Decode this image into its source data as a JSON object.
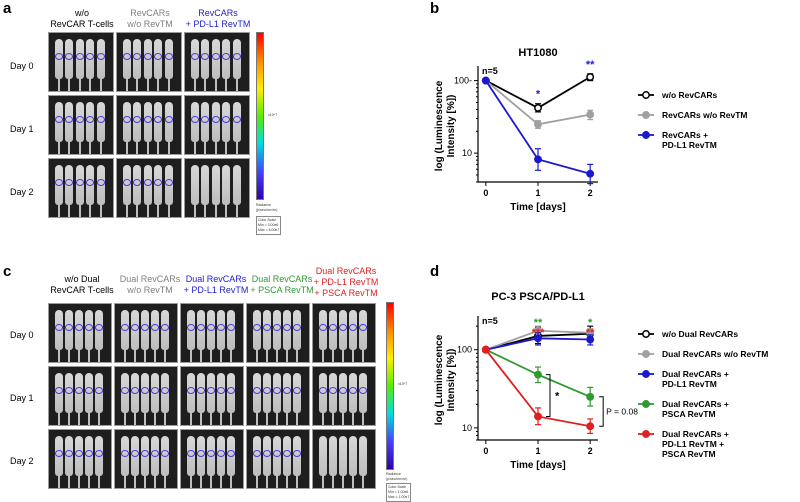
{
  "panels": {
    "a": {
      "label": "a",
      "columns": [
        {
          "line1": "w/o",
          "line2": "RevCAR T-cells",
          "color": "#000000"
        },
        {
          "line1": "RevCARs",
          "line2": "w/o RevTM",
          "color": "#808080"
        },
        {
          "line1": "RevCARs",
          "line2": "+ PD-L1 RevTM",
          "color": "#2020d0"
        }
      ],
      "rows": [
        "Day 0",
        "Day 1",
        "Day 2"
      ],
      "colorbar": {
        "exponent": "x10^7",
        "unit_title": "Radiance",
        "unit_sub": "(p/sec/cm²/sr)",
        "scale_title": "Color Scale",
        "scale_min": "Min = 3.00e6",
        "scale_max": "Max = 6.00e7"
      }
    },
    "b": {
      "label": "b"
    },
    "c": {
      "label": "c",
      "columns": [
        {
          "line1": "w/o Dual",
          "line2": "RevCAR T-cells",
          "line3": "",
          "color": "#000000"
        },
        {
          "line1": "Dual RevCARs",
          "line2": "w/o RevTM",
          "line3": "",
          "color": "#808080"
        },
        {
          "line1": "Dual RevCARs",
          "line2": "+ PD-L1 RevTM",
          "line3": "",
          "color": "#2020d0"
        },
        {
          "line1": "Dual RevCARs",
          "line2": "+ PSCA RevTM",
          "line3": "",
          "color": "#2f9a2f"
        },
        {
          "line1": "Dual RevCARs",
          "line2": "+ PD-L1 RevTM",
          "line3": "+ PSCA RevTM",
          "color": "#e02020"
        }
      ],
      "rows": [
        "Day 0",
        "Day 1",
        "Day 2"
      ],
      "colorbar": {
        "exponent": "x10^7",
        "unit_title": "Radiance",
        "unit_sub": "(p/sec/cm²/sr)",
        "scale_title": "Color Scale",
        "scale_min": "Min = 1.00e6",
        "scale_max": "Max = 1.00e7"
      }
    },
    "d": {
      "label": "d"
    }
  },
  "chart_data": [
    {
      "type": "line",
      "title": "HT1080",
      "xlabel": "Time [days]",
      "ylabel_line1": "log (Luminescence",
      "ylabel_line2": "Intensity [%])",
      "yscale": "log",
      "ylim": [
        4,
        140
      ],
      "xlim": [
        -0.15,
        2.15
      ],
      "xticks": [
        0,
        1,
        2
      ],
      "yticks": [
        {
          "v": 10,
          "label": "10"
        },
        {
          "v": 100,
          "label": "100-"
        }
      ],
      "annotation": "n=5",
      "x": [
        0,
        1,
        2
      ],
      "series": [
        {
          "name": "w/o RevCARs",
          "color": "#000000",
          "marker": "open",
          "values": [
            100,
            42,
            112
          ],
          "err": [
            [
              100,
              100
            ],
            [
              37,
              48
            ],
            [
              100,
              124
            ]
          ]
        },
        {
          "name": "RevCARs w/o RevTM",
          "color": "#a0a0a0",
          "marker": "filled",
          "values": [
            100,
            25,
            34
          ],
          "err": [
            [
              100,
              100
            ],
            [
              22,
              28
            ],
            [
              29,
              39
            ]
          ]
        },
        {
          "name": "RevCARs + PD-L1 RevTM",
          "legend_line1": "RevCARs +",
          "legend_line2": "PD-L1 RevTM",
          "color": "#1a1acc",
          "marker": "filled",
          "values": [
            100,
            8.2,
            5.2
          ],
          "err": [
            [
              100,
              100
            ],
            [
              5.8,
              11.5
            ],
            [
              3.8,
              7
            ]
          ]
        }
      ],
      "significance": [
        {
          "x": 1,
          "text": "*",
          "color": "#1a1acc"
        },
        {
          "x": 2,
          "text": "**",
          "color": "#1a1acc"
        }
      ]
    },
    {
      "type": "line",
      "title": "PC-3 PSCA/PD-L1",
      "xlabel": "Time [days]",
      "ylabel_line1": "log (Luminescence",
      "ylabel_line2": "Intensity [%])",
      "yscale": "log",
      "ylim": [
        7,
        240
      ],
      "xlim": [
        -0.15,
        2.15
      ],
      "xticks": [
        0,
        1,
        2
      ],
      "yticks": [
        {
          "v": 10,
          "label": "10"
        },
        {
          "v": 100,
          "label": "100"
        }
      ],
      "annotation": "n=5",
      "x": [
        0,
        1,
        2
      ],
      "series": [
        {
          "name": "w/o Dual RevCARs",
          "color": "#000000",
          "marker": "open",
          "values": [
            100,
            150,
            160
          ],
          "err": [
            [
              100,
              100
            ],
            [
              120,
              195
            ],
            [
              130,
              200
            ]
          ]
        },
        {
          "name": "Dual RevCARs w/o RevTM",
          "color": "#a0a0a0",
          "marker": "filled",
          "values": [
            100,
            175,
            165
          ],
          "err": [
            [
              100,
              100
            ],
            [
              150,
              200
            ],
            [
              145,
              185
            ]
          ]
        },
        {
          "name": "Dual RevCARs + PD-L1 RevTM",
          "legend_line1": "Dual RevCARs +",
          "legend_line2": "PD-L1 RevTM",
          "color": "#1a1acc",
          "marker": "filled",
          "values": [
            100,
            140,
            135
          ],
          "err": [
            [
              100,
              100
            ],
            [
              115,
              165
            ],
            [
              115,
              155
            ]
          ]
        },
        {
          "name": "Dual RevCARs + PSCA RevTM",
          "legend_line1": "Dual RevCARs +",
          "legend_line2": "PSCA RevTM",
          "color": "#2f9a2f",
          "marker": "filled",
          "values": [
            100,
            48,
            25
          ],
          "err": [
            [
              100,
              100
            ],
            [
              38,
              60
            ],
            [
              19,
              33
            ]
          ]
        },
        {
          "name": "Dual RevCARs + PD-L1 RevTM + PSCA RevTM",
          "legend_line1": "Dual RevCARs +",
          "legend_line2": "PD-L1 RevTM +",
          "legend_line3": "PSCA RevTM",
          "color": "#e02020",
          "marker": "filled",
          "values": [
            100,
            14,
            10.5
          ],
          "err": [
            [
              100,
              100
            ],
            [
              11,
              18
            ],
            [
              8.5,
              13
            ]
          ]
        }
      ],
      "significance": [
        {
          "x": 1,
          "text": "**",
          "color": "#2f9a2f",
          "row": 0
        },
        {
          "x": 1,
          "text": "***",
          "color": "#e02020",
          "row": 1
        },
        {
          "x": 2,
          "text": "*",
          "color": "#2f9a2f",
          "row": 0
        },
        {
          "x": 2,
          "text": "**",
          "color": "#e02020",
          "row": 1
        }
      ],
      "brackets": [
        {
          "text": "*",
          "x": 1
        },
        {
          "text": "P = 0.08",
          "x": 2
        }
      ]
    }
  ]
}
